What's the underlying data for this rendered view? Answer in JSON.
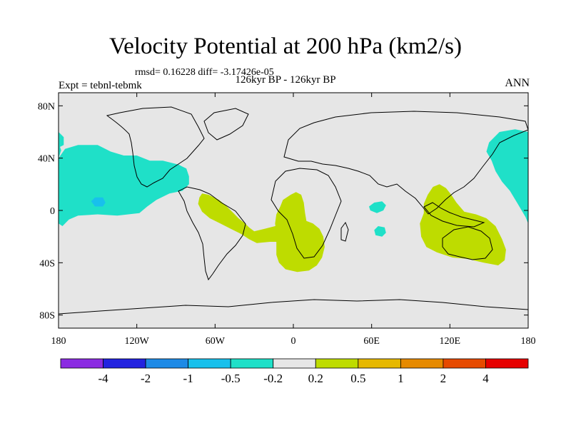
{
  "chart_data": {
    "type": "contour_map",
    "title": "Velocity Potential at 200 hPa (km2/s)",
    "stats_line": "rmsd= 0.16228 diff= -3.17426e-05",
    "experiment": "Expt = tebnl-tebmk",
    "period": "126kyr BP - 126kyr BP",
    "season": "ANN",
    "projection": "cylindrical equidistant",
    "xlim": [
      -180,
      180
    ],
    "ylim": [
      -90,
      90
    ],
    "x_ticks": [
      {
        "value": -180,
        "label": "180"
      },
      {
        "value": -120,
        "label": "120W"
      },
      {
        "value": -60,
        "label": "60W"
      },
      {
        "value": 0,
        "label": "0"
      },
      {
        "value": 60,
        "label": "60E"
      },
      {
        "value": 120,
        "label": "120E"
      },
      {
        "value": 180,
        "label": "180"
      }
    ],
    "y_ticks": [
      {
        "value": 80,
        "label": "80N"
      },
      {
        "value": 40,
        "label": "40N"
      },
      {
        "value": 0,
        "label": "0"
      },
      {
        "value": -40,
        "label": "40S"
      },
      {
        "value": -80,
        "label": "80S"
      }
    ],
    "colorbar": {
      "colors": [
        "#8b2be2",
        "#2222e0",
        "#1e8ae6",
        "#18c0ec",
        "#1fe0c8",
        "#e6e6e6",
        "#bedc00",
        "#e6b800",
        "#e68a00",
        "#e64a00",
        "#e60000"
      ],
      "boundaries": [
        "-4",
        "-2",
        "-1",
        "-0.5",
        "-0.2",
        "0.2",
        "0.5",
        "1",
        "2",
        "4"
      ]
    },
    "regions": [
      {
        "name": "north-pacific-negative",
        "level": "-0.5 to -0.2",
        "color": "#1fe0c8",
        "points": [
          [
            -180,
            -10
          ],
          [
            -180,
            40
          ],
          [
            -175,
            47
          ],
          [
            -165,
            50
          ],
          [
            -150,
            50
          ],
          [
            -140,
            45
          ],
          [
            -130,
            42
          ],
          [
            -125,
            42
          ],
          [
            -120,
            42
          ],
          [
            -110,
            38
          ],
          [
            -100,
            38
          ],
          [
            -88,
            35
          ],
          [
            -82,
            32
          ],
          [
            -80,
            26
          ],
          [
            -80,
            20
          ],
          [
            -85,
            15
          ],
          [
            -95,
            13
          ],
          [
            -105,
            8
          ],
          [
            -112,
            3
          ],
          [
            -118,
            -2
          ],
          [
            -135,
            -4
          ],
          [
            -150,
            -3
          ],
          [
            -165,
            -4
          ],
          [
            -172,
            -7
          ],
          [
            -177,
            -12
          ]
        ]
      },
      {
        "name": "north-pacific-core",
        "level": "-1 to -0.5",
        "color": "#18c0ec",
        "points": [
          [
            -155,
            7
          ],
          [
            -152,
            10
          ],
          [
            -146,
            10
          ],
          [
            -144,
            6
          ],
          [
            -146,
            3
          ],
          [
            -152,
            3
          ]
        ]
      },
      {
        "name": "north-atlantic-edge",
        "level": "-0.5 to -0.2",
        "color": "#1fe0c8",
        "points": [
          [
            -180,
            48
          ],
          [
            -180,
            60
          ],
          [
            -176,
            56
          ],
          [
            -176,
            50
          ]
        ]
      },
      {
        "name": "west-pacific-negative",
        "level": "-0.5 to -0.2",
        "color": "#1fe0c8",
        "points": [
          [
            180,
            -10
          ],
          [
            178,
            -5
          ],
          [
            172,
            5
          ],
          [
            166,
            15
          ],
          [
            160,
            22
          ],
          [
            155,
            30
          ],
          [
            152,
            38
          ],
          [
            148,
            45
          ],
          [
            150,
            52
          ],
          [
            158,
            60
          ],
          [
            170,
            62
          ],
          [
            180,
            60
          ]
        ]
      },
      {
        "name": "west-pacific-negative-east",
        "level": "-0.5 to -0.2",
        "color": "#1fe0c8",
        "points": [
          [
            -180,
            40
          ],
          [
            -178,
            46
          ],
          [
            -180,
            52
          ]
        ]
      },
      {
        "name": "indian-ocean-small-1",
        "level": "-0.5 to -0.2",
        "color": "#1fe0c8",
        "points": [
          [
            58,
            3
          ],
          [
            62,
            6
          ],
          [
            68,
            7
          ],
          [
            71,
            4
          ],
          [
            69,
            0
          ],
          [
            64,
            -2
          ],
          [
            59,
            0
          ]
        ]
      },
      {
        "name": "indian-ocean-small-2",
        "level": "-0.5 to -0.2",
        "color": "#1fe0c8",
        "points": [
          [
            62,
            -15
          ],
          [
            65,
            -12
          ],
          [
            70,
            -13
          ],
          [
            71,
            -17
          ],
          [
            68,
            -20
          ],
          [
            63,
            -19
          ]
        ]
      },
      {
        "name": "south-america-positive",
        "level": "0.2 to 0.5",
        "color": "#bedc00",
        "points": [
          [
            -70,
            13
          ],
          [
            -65,
            12
          ],
          [
            -57,
            8
          ],
          [
            -52,
            4
          ],
          [
            -47,
            -1
          ],
          [
            -42,
            -6
          ],
          [
            -37,
            -10
          ],
          [
            -34,
            -13
          ],
          [
            -30,
            -16
          ],
          [
            -22,
            -14
          ],
          [
            -14,
            -12
          ],
          [
            -6,
            -10
          ],
          [
            -4,
            -16
          ],
          [
            -6,
            -22
          ],
          [
            -10,
            -24
          ],
          [
            -18,
            -24
          ],
          [
            -28,
            -25
          ],
          [
            -34,
            -22
          ],
          [
            -40,
            -18
          ],
          [
            -48,
            -14
          ],
          [
            -56,
            -10
          ],
          [
            -64,
            -6
          ],
          [
            -70,
            -1
          ],
          [
            -73,
            5
          ],
          [
            -72,
            10
          ]
        ]
      },
      {
        "name": "africa-atlantic-positive",
        "level": "0.2 to 0.5",
        "color": "#bedc00",
        "points": [
          [
            -8,
            8
          ],
          [
            -2,
            12
          ],
          [
            2,
            14
          ],
          [
            6,
            12
          ],
          [
            8,
            6
          ],
          [
            9,
            -2
          ],
          [
            10,
            -8
          ],
          [
            15,
            -10
          ],
          [
            20,
            -14
          ],
          [
            23,
            -20
          ],
          [
            24,
            -28
          ],
          [
            22,
            -36
          ],
          [
            18,
            -42
          ],
          [
            12,
            -46
          ],
          [
            3,
            -47
          ],
          [
            -6,
            -45
          ],
          [
            -11,
            -40
          ],
          [
            -13,
            -34
          ],
          [
            -13,
            -26
          ],
          [
            -13,
            -18
          ],
          [
            -14,
            -10
          ],
          [
            -13,
            -3
          ],
          [
            -10,
            3
          ]
        ]
      },
      {
        "name": "maritime-continent-positive",
        "level": "0.2 to 0.5",
        "color": "#bedc00",
        "points": [
          [
            100,
            -2
          ],
          [
            100,
            5
          ],
          [
            103,
            12
          ],
          [
            107,
            18
          ],
          [
            112,
            20
          ],
          [
            117,
            17
          ],
          [
            121,
            12
          ],
          [
            125,
            6
          ],
          [
            131,
            -1
          ],
          [
            140,
            -3
          ],
          [
            148,
            -6
          ],
          [
            155,
            -12
          ],
          [
            160,
            -22
          ],
          [
            163,
            -30
          ],
          [
            162,
            -38
          ],
          [
            157,
            -42
          ],
          [
            146,
            -40
          ],
          [
            133,
            -37
          ],
          [
            122,
            -36
          ],
          [
            110,
            -32
          ],
          [
            102,
            -28
          ],
          [
            98,
            -20
          ],
          [
            97,
            -10
          ]
        ]
      }
    ]
  }
}
